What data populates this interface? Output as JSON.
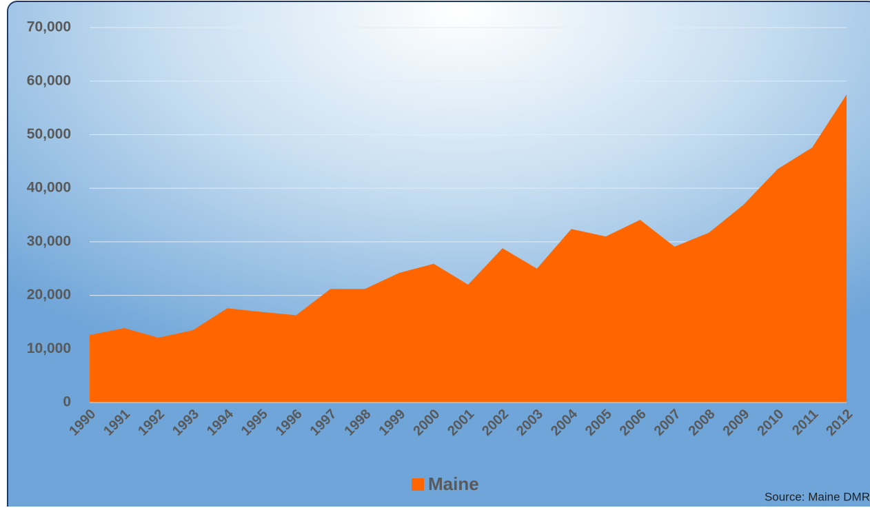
{
  "chart_data": {
    "type": "area",
    "categories": [
      "1990",
      "1991",
      "1992",
      "1993",
      "1994",
      "1995",
      "1996",
      "1997",
      "1998",
      "1999",
      "2000",
      "2001",
      "2002",
      "2003",
      "2004",
      "2005",
      "2006",
      "2007",
      "2008",
      "2009",
      "2010",
      "2011",
      "2012"
    ],
    "series": [
      {
        "name": "Maine",
        "color": "#ff6600",
        "values": [
          12600,
          13900,
          12100,
          13500,
          17600,
          16900,
          16300,
          21200,
          21200,
          24200,
          25900,
          22000,
          28800,
          25000,
          32400,
          31000,
          34100,
          29100,
          31700,
          36900,
          43600,
          47600,
          57500
        ]
      }
    ],
    "ylim": [
      0,
      70000
    ],
    "yticks": [
      0,
      {
        "value": 10000,
        "label": "10,000"
      },
      {
        "value": 20000,
        "label": "20,000"
      },
      {
        "value": 30000,
        "label": "30,000"
      },
      {
        "value": 40000,
        "label": "40,000"
      },
      {
        "value": 50000,
        "label": "50,000"
      },
      {
        "value": 60000,
        "label": "60,000"
      },
      {
        "value": 70000,
        "label": "70,000"
      }
    ],
    "grid": true,
    "legend": "bottom",
    "source": "Source:  Maine DMR"
  }
}
